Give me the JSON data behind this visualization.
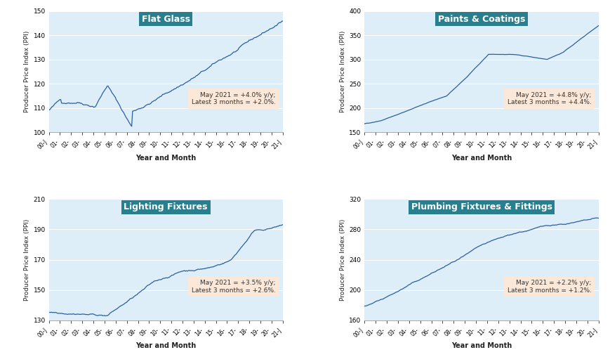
{
  "panels": [
    {
      "title": "Flat Glass",
      "ylabel": "Producer Price Index (PPI)",
      "xlabel": "Year and Month",
      "annotation": "May 2021 = +4.0% y/y;\nLatest 3 months = +2.0%.",
      "ylim": [
        100,
        150
      ],
      "yticks": [
        100,
        110,
        120,
        130,
        140,
        150
      ],
      "line_color": "#2b5f9e",
      "bg_color": "#ddeef8"
    },
    {
      "title": "Paints & Coatings",
      "ylabel": "Producer Price Index (PPI)",
      "xlabel": "Year and Month",
      "annotation": "May 2021 = +4.8% y/y;\nLatest 3 months = +4.4%.",
      "ylim": [
        150,
        400
      ],
      "yticks": [
        150,
        200,
        250,
        300,
        350,
        400
      ],
      "line_color": "#2b5f9e",
      "bg_color": "#ddeef8"
    },
    {
      "title": "Lighting Fixtures",
      "ylabel": "Producer Price Index (PPI)",
      "xlabel": "Year and Month",
      "annotation": "May 2021 = +3.5% y/y;\nLatest 3 months = +2.6%.",
      "ylim": [
        130,
        210
      ],
      "yticks": [
        130,
        150,
        170,
        190,
        210
      ],
      "line_color": "#2b5f9e",
      "bg_color": "#ddeef8"
    },
    {
      "title": "Plumbing Fixtures & Fittings",
      "ylabel": "Producer Price Index (PPI)",
      "xlabel": "Year and Month",
      "annotation": "May 2021 = +2.2% y/y;\nLatest 3 months = +1.2%.",
      "ylim": [
        160,
        320
      ],
      "yticks": [
        160,
        200,
        240,
        280,
        320
      ],
      "line_color": "#2b5f9e",
      "bg_color": "#ddeef8"
    }
  ],
  "title_box_color": "#2a7f8f",
  "title_text_color": "#ffffff",
  "annotation_box_color": "#fde8d8",
  "annotation_text_color": "#333333",
  "grid_color": "#ffffff",
  "tick_labels": [
    "00-J",
    "01-",
    "02-",
    "03-",
    "04-",
    "05-",
    "06-",
    "07-",
    "08-",
    "09-",
    "10-",
    "11-",
    "12-",
    "13-",
    "14-",
    "15-",
    "16-",
    "17-",
    "18-",
    "19-",
    "20-",
    "21-J"
  ],
  "n_points": 258
}
